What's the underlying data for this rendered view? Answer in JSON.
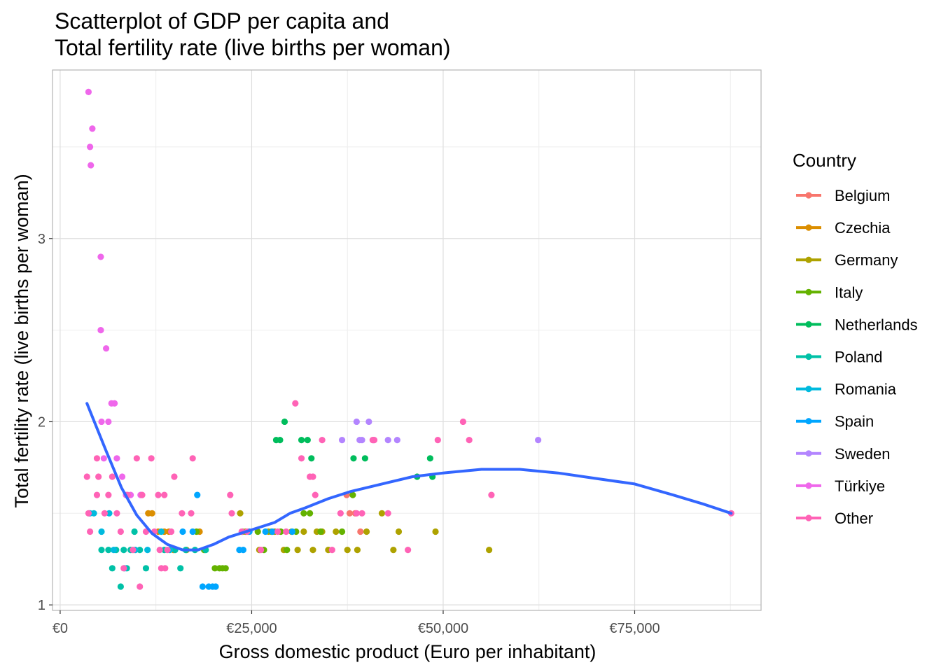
{
  "chart_data": {
    "type": "scatter",
    "title": [
      "Scatterplot of GDP per capita and",
      "Total fertility rate (live births per woman)"
    ],
    "xlabel": "Gross domestic product (Euro per inhabitant)",
    "ylabel": "Total fertility rate (live births per woman)",
    "xlim": [
      -1000,
      91500
    ],
    "ylim": [
      0.97,
      3.92
    ],
    "x_ticks": [
      0,
      25000,
      50000,
      75000
    ],
    "x_tick_labels": [
      "€0",
      "€25,000",
      "€50,000",
      "€75,000"
    ],
    "y_ticks": [
      1,
      2,
      3
    ],
    "y_tick_labels": [
      "1",
      "2",
      "3"
    ],
    "grid": true,
    "legend": {
      "title": "Country",
      "placement": "right",
      "entries": [
        "Belgium",
        "Czechia",
        "Germany",
        "Italy",
        "Netherlands",
        "Poland",
        "Romania",
        "Spain",
        "Sweden",
        "Türkiye",
        "Other"
      ]
    },
    "colors": {
      "Belgium": "#F8766D",
      "Czechia": "#DB8E00",
      "Germany": "#AEA200",
      "Italy": "#64B200",
      "Netherlands": "#00BD5C",
      "Poland": "#00C1A7",
      "Romania": "#00BADE",
      "Spain": "#00A6FF",
      "Sweden": "#B385FF",
      "Türkiye": "#EF67EB",
      "Other": "#FF63B6",
      "trend": "#3366FF"
    },
    "series": [
      {
        "name": "Belgium",
        "points": [
          [
            37400,
            1.6
          ],
          [
            37800,
            1.5
          ],
          [
            38500,
            1.5
          ],
          [
            39200,
            1.4
          ]
        ]
      },
      {
        "name": "Czechia",
        "points": [
          [
            11500,
            1.5
          ],
          [
            12000,
            1.5
          ],
          [
            12800,
            1.4
          ],
          [
            13600,
            1.4
          ],
          [
            14200,
            1.4
          ],
          [
            14800,
            1.3
          ],
          [
            16500,
            1.3
          ],
          [
            18200,
            1.4
          ]
        ]
      },
      {
        "name": "Germany",
        "points": [
          [
            23500,
            1.5
          ],
          [
            24200,
            1.4
          ],
          [
            26000,
            1.3
          ],
          [
            27200,
            1.4
          ],
          [
            28000,
            1.4
          ],
          [
            29200,
            1.3
          ],
          [
            30200,
            1.4
          ],
          [
            31000,
            1.3
          ],
          [
            31800,
            1.4
          ],
          [
            33000,
            1.3
          ],
          [
            33500,
            1.4
          ],
          [
            34200,
            1.4
          ],
          [
            35000,
            1.3
          ],
          [
            36000,
            1.4
          ],
          [
            37500,
            1.3
          ],
          [
            38800,
            1.3
          ],
          [
            40000,
            1.4
          ],
          [
            42000,
            1.5
          ],
          [
            43500,
            1.3
          ],
          [
            44200,
            1.4
          ],
          [
            49000,
            1.4
          ],
          [
            56000,
            1.3
          ]
        ]
      },
      {
        "name": "Italy",
        "points": [
          [
            17800,
            1.4
          ],
          [
            18800,
            1.3
          ],
          [
            20200,
            1.2
          ],
          [
            20800,
            1.2
          ],
          [
            21200,
            1.2
          ],
          [
            21600,
            1.2
          ],
          [
            23800,
            1.4
          ],
          [
            24600,
            1.4
          ],
          [
            25800,
            1.4
          ],
          [
            26600,
            1.3
          ],
          [
            27600,
            1.4
          ],
          [
            28800,
            1.4
          ],
          [
            29600,
            1.3
          ],
          [
            30800,
            1.4
          ],
          [
            31800,
            1.5
          ],
          [
            32600,
            1.5
          ],
          [
            34000,
            1.4
          ],
          [
            36800,
            1.4
          ],
          [
            38200,
            1.6
          ]
        ]
      },
      {
        "name": "Netherlands",
        "points": [
          [
            28200,
            1.9
          ],
          [
            28700,
            1.9
          ],
          [
            29300,
            2.0
          ],
          [
            31500,
            1.9
          ],
          [
            32300,
            1.9
          ],
          [
            32800,
            1.8
          ],
          [
            38300,
            1.8
          ],
          [
            39800,
            1.8
          ],
          [
            48300,
            1.8
          ],
          [
            46600,
            1.7
          ],
          [
            48600,
            1.7
          ]
        ]
      },
      {
        "name": "Poland",
        "points": [
          [
            5400,
            1.3
          ],
          [
            6300,
            1.3
          ],
          [
            6800,
            1.2
          ],
          [
            7300,
            1.3
          ],
          [
            7900,
            1.1
          ],
          [
            8300,
            1.3
          ],
          [
            8700,
            1.2
          ],
          [
            9200,
            1.3
          ],
          [
            9700,
            1.4
          ],
          [
            10400,
            1.3
          ],
          [
            11200,
            1.2
          ],
          [
            13600,
            1.3
          ],
          [
            15000,
            1.3
          ],
          [
            15700,
            1.2
          ],
          [
            16400,
            1.3
          ],
          [
            17600,
            1.3
          ],
          [
            19000,
            1.3
          ]
        ]
      },
      {
        "name": "Romania",
        "points": [
          [
            3900,
            1.5
          ],
          [
            4400,
            1.5
          ],
          [
            5400,
            1.4
          ],
          [
            6400,
            1.5
          ],
          [
            7000,
            1.3
          ],
          [
            8400,
            1.2
          ],
          [
            9800,
            1.3
          ],
          [
            11400,
            1.3
          ],
          [
            13200,
            1.4
          ],
          [
            14300,
            1.3
          ]
        ]
      },
      {
        "name": "Spain",
        "points": [
          [
            16000,
            1.4
          ],
          [
            17300,
            1.4
          ],
          [
            17900,
            1.6
          ],
          [
            18600,
            1.1
          ],
          [
            19400,
            1.1
          ],
          [
            19900,
            1.1
          ],
          [
            20300,
            1.1
          ],
          [
            23400,
            1.3
          ],
          [
            23900,
            1.3
          ],
          [
            24700,
            1.4
          ],
          [
            26800,
            1.4
          ],
          [
            27700,
            1.4
          ],
          [
            30300,
            1.4
          ]
        ]
      },
      {
        "name": "Sweden",
        "points": [
          [
            36800,
            1.9
          ],
          [
            38700,
            2.0
          ],
          [
            39400,
            1.9
          ],
          [
            40300,
            2.0
          ],
          [
            39100,
            1.9
          ],
          [
            40900,
            1.9
          ],
          [
            42800,
            1.9
          ],
          [
            44000,
            1.9
          ],
          [
            62400,
            1.9
          ]
        ]
      },
      {
        "name": "Türkiye",
        "points": [
          [
            3700,
            3.8
          ],
          [
            4200,
            3.6
          ],
          [
            3900,
            3.5
          ],
          [
            4000,
            3.4
          ],
          [
            5300,
            2.9
          ],
          [
            5300,
            2.5
          ],
          [
            6000,
            2.4
          ],
          [
            6700,
            2.1
          ],
          [
            7100,
            2.1
          ],
          [
            5400,
            2.0
          ],
          [
            6300,
            2.0
          ],
          [
            5700,
            1.8
          ],
          [
            7400,
            1.8
          ],
          [
            8100,
            1.7
          ],
          [
            8600,
            1.6
          ],
          [
            9200,
            1.6
          ],
          [
            10500,
            1.6
          ]
        ]
      },
      {
        "name": "Other",
        "points": [
          [
            3500,
            1.7
          ],
          [
            3700,
            1.5
          ],
          [
            3900,
            1.4
          ],
          [
            4800,
            1.8
          ],
          [
            4800,
            1.6
          ],
          [
            5000,
            1.7
          ],
          [
            5800,
            1.5
          ],
          [
            6300,
            1.6
          ],
          [
            6800,
            1.7
          ],
          [
            7400,
            1.5
          ],
          [
            7900,
            1.4
          ],
          [
            8300,
            1.2
          ],
          [
            8800,
            1.6
          ],
          [
            9500,
            1.3
          ],
          [
            10000,
            1.8
          ],
          [
            10400,
            1.1
          ],
          [
            10700,
            1.6
          ],
          [
            11200,
            1.4
          ],
          [
            11900,
            1.8
          ],
          [
            12300,
            1.4
          ],
          [
            12800,
            1.6
          ],
          [
            13000,
            1.3
          ],
          [
            13200,
            1.2
          ],
          [
            13600,
            1.6
          ],
          [
            13700,
            1.2
          ],
          [
            14000,
            1.3
          ],
          [
            14500,
            1.4
          ],
          [
            14900,
            1.7
          ],
          [
            15900,
            1.5
          ],
          [
            17100,
            1.5
          ],
          [
            17300,
            1.8
          ],
          [
            22200,
            1.6
          ],
          [
            22400,
            1.5
          ],
          [
            23700,
            1.4
          ],
          [
            24400,
            1.4
          ],
          [
            26200,
            1.3
          ],
          [
            28400,
            1.4
          ],
          [
            29500,
            1.4
          ],
          [
            30700,
            2.1
          ],
          [
            31500,
            1.8
          ],
          [
            32600,
            1.7
          ],
          [
            33300,
            1.6
          ],
          [
            33000,
            1.7
          ],
          [
            34200,
            1.9
          ],
          [
            35500,
            1.3
          ],
          [
            36600,
            1.5
          ],
          [
            38700,
            1.5
          ],
          [
            39400,
            1.5
          ],
          [
            40800,
            1.9
          ],
          [
            41000,
            1.9
          ],
          [
            42800,
            1.5
          ],
          [
            45400,
            1.3
          ],
          [
            49300,
            1.9
          ],
          [
            52600,
            2.0
          ],
          [
            53400,
            1.9
          ],
          [
            56300,
            1.6
          ],
          [
            87600,
            1.5
          ]
        ]
      }
    ],
    "trend": {
      "name": "smooth",
      "x": [
        3500,
        6000,
        8000,
        10000,
        12000,
        14000,
        16000,
        18000,
        20000,
        22000,
        25000,
        28000,
        30000,
        32000,
        35000,
        38000,
        40000,
        43000,
        46000,
        50000,
        55000,
        60000,
        65000,
        70000,
        75000,
        80000,
        84000,
        87600
      ],
      "y": [
        2.1,
        1.84,
        1.64,
        1.49,
        1.39,
        1.33,
        1.3,
        1.3,
        1.33,
        1.37,
        1.41,
        1.45,
        1.5,
        1.53,
        1.58,
        1.62,
        1.64,
        1.67,
        1.7,
        1.72,
        1.74,
        1.74,
        1.72,
        1.69,
        1.66,
        1.6,
        1.55,
        1.5
      ]
    }
  }
}
